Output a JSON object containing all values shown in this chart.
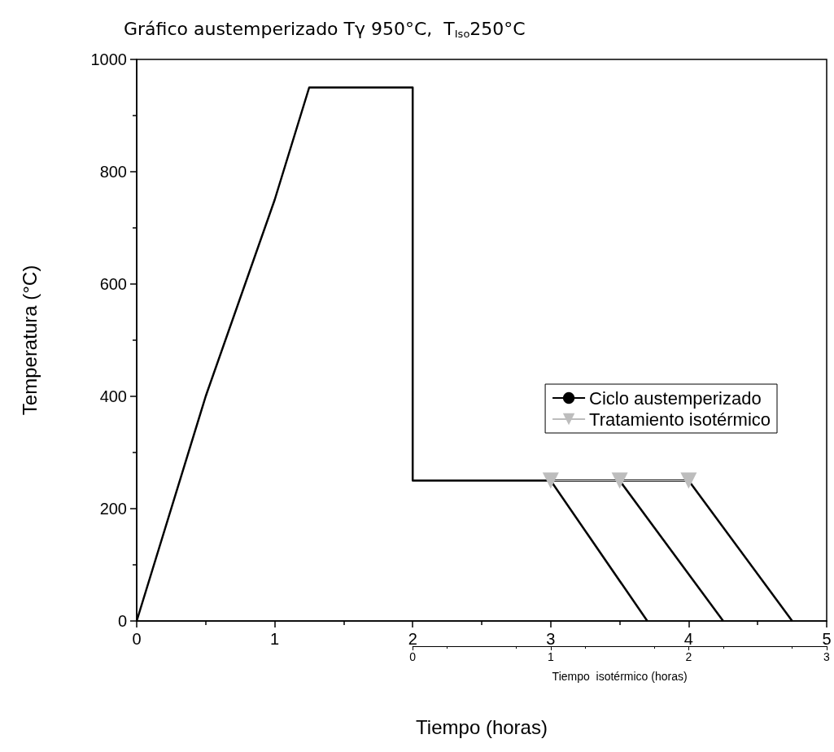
{
  "chart_data": {
    "type": "line",
    "title": "Gráfico austemperizado Tγ 950°C,  T$_{Iso}$250°C",
    "xlabel": "Tiempo (horas)",
    "ylabel": "Temperatura (°C)",
    "x2label": "Tiempo  isotérmico (horas)",
    "xlim": [
      0,
      5
    ],
    "xticks": [
      0,
      1,
      2,
      3,
      4,
      5
    ],
    "ylim": [
      0,
      1000
    ],
    "yticks": [
      0,
      200,
      400,
      600,
      800,
      1000
    ],
    "x2lim": [
      0,
      3
    ],
    "x2ticks": [
      0,
      1,
      2,
      3
    ],
    "series": [
      {
        "name": "Ciclo austemperizado",
        "color": "#000000",
        "x": [
          0,
          0.5,
          1,
          1.25,
          2,
          2,
          4
        ],
        "values": [
          0,
          400,
          750,
          950,
          950,
          250,
          250
        ]
      },
      {
        "color": "#000000",
        "x": [
          3,
          3.7
        ],
        "values": [
          250,
          0
        ]
      },
      {
        "color": "#000000",
        "x": [
          3.5,
          4.25
        ],
        "values": [
          250,
          0
        ]
      },
      {
        "color": "#000000",
        "x": [
          4,
          4.75
        ],
        "values": [
          250,
          0
        ]
      },
      {
        "name": "Tratamiento isotérmico",
        "color": "#bdbdbd",
        "marker": "triangle",
        "x": [
          3,
          3.5,
          4
        ],
        "values": [
          250,
          250,
          250
        ]
      }
    ],
    "legend": "right",
    "grid": false
  }
}
